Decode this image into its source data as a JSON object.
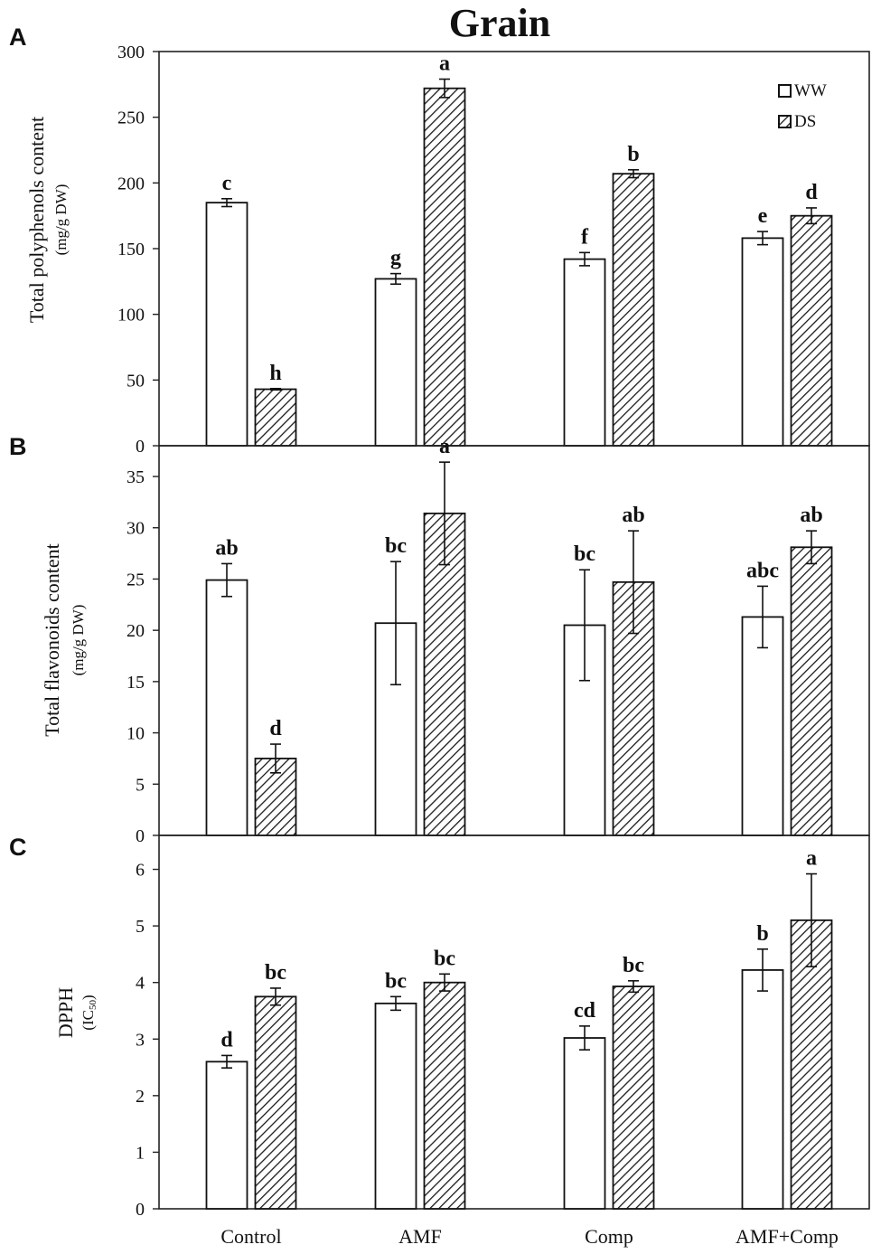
{
  "title": "Grain",
  "legend": [
    {
      "label": "WW",
      "pattern": "open"
    },
    {
      "label": "DS",
      "pattern": "hatched"
    }
  ],
  "chart_data": [
    {
      "type": "bar",
      "panel_label": "A",
      "ylabel_line1": "Total polyphenols content",
      "ylabel_line2": "(mg/g DW)",
      "ylim": [
        0,
        300
      ],
      "yticks": [
        0,
        50,
        100,
        150,
        200,
        250,
        300
      ],
      "categories": [
        "Control",
        "AMF",
        "Comp",
        "AMF+Comp"
      ],
      "series": [
        {
          "name": "WW",
          "values": [
            185,
            127,
            142,
            158
          ],
          "errors": [
            3,
            4,
            5,
            5
          ],
          "letters": [
            "c",
            "g",
            "f",
            "e"
          ]
        },
        {
          "name": "DS",
          "values": [
            43,
            272,
            207,
            175
          ],
          "errors": [
            0.5,
            7,
            3,
            6
          ],
          "letters": [
            "h",
            "a",
            "b",
            "d"
          ]
        }
      ],
      "legend_position": "top-right"
    },
    {
      "type": "bar",
      "panel_label": "B",
      "ylabel_line1": "Total flavonoids content",
      "ylabel_line2": "(mg/g DW)",
      "ylim": [
        0,
        38
      ],
      "yticks": [
        0,
        5,
        10,
        15,
        20,
        25,
        30,
        35
      ],
      "categories": [
        "Control",
        "AMF",
        "Comp",
        "AMF+Comp"
      ],
      "series": [
        {
          "name": "WW",
          "values": [
            24.9,
            20.7,
            20.5,
            21.3
          ],
          "errors": [
            1.6,
            6.0,
            5.4,
            3.0
          ],
          "letters": [
            "ab",
            "bc",
            "bc",
            "abc"
          ]
        },
        {
          "name": "DS",
          "values": [
            7.5,
            31.4,
            24.7,
            28.1
          ],
          "errors": [
            1.4,
            5.0,
            5.0,
            1.6
          ],
          "letters": [
            "d",
            "a",
            "ab",
            "ab"
          ]
        }
      ]
    },
    {
      "type": "bar",
      "panel_label": "C",
      "ylabel_line1": "DPPH",
      "ylabel_line2": "(IC",
      "ylabel_sub": "50",
      "ylabel_close": ")",
      "ylim": [
        0,
        6.6
      ],
      "yticks": [
        0,
        1,
        2,
        3,
        4,
        5,
        6
      ],
      "categories": [
        "Control",
        "AMF",
        "Comp",
        "AMF+Comp"
      ],
      "series": [
        {
          "name": "WW",
          "values": [
            2.6,
            3.63,
            3.02,
            4.22
          ],
          "errors": [
            0.11,
            0.12,
            0.21,
            0.37
          ],
          "letters": [
            "d",
            "bc",
            "cd",
            "b"
          ]
        },
        {
          "name": "DS",
          "values": [
            3.75,
            4.0,
            3.93,
            5.1
          ],
          "errors": [
            0.15,
            0.15,
            0.1,
            0.82
          ],
          "letters": [
            "bc",
            "bc",
            "bc",
            "a"
          ]
        }
      ]
    }
  ]
}
